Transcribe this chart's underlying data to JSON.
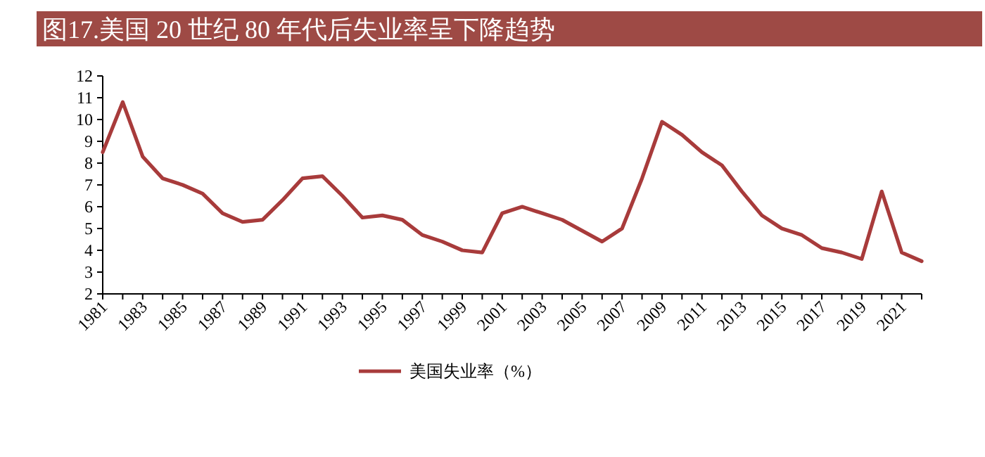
{
  "chart_data": {
    "type": "line",
    "title": "图17.美国 20 世纪 80 年代后失业率呈下降趋势",
    "x": [
      1981,
      1982,
      1983,
      1984,
      1985,
      1986,
      1987,
      1988,
      1989,
      1990,
      1991,
      1992,
      1993,
      1994,
      1995,
      1996,
      1997,
      1998,
      1999,
      2000,
      2001,
      2002,
      2003,
      2004,
      2005,
      2006,
      2007,
      2008,
      2009,
      2010,
      2011,
      2012,
      2013,
      2014,
      2015,
      2016,
      2017,
      2018,
      2019,
      2020,
      2021,
      2022
    ],
    "series": [
      {
        "name": "美国失业率（%）",
        "color": "#a83b3b",
        "values": [
          8.5,
          10.8,
          8.3,
          7.3,
          7.0,
          6.6,
          5.7,
          5.3,
          5.4,
          6.3,
          7.3,
          7.4,
          6.5,
          5.5,
          5.6,
          5.4,
          4.7,
          4.4,
          4.0,
          3.9,
          5.7,
          6.0,
          5.7,
          5.4,
          4.9,
          4.4,
          5.0,
          7.3,
          9.9,
          9.3,
          8.5,
          7.9,
          6.7,
          5.6,
          5.0,
          4.7,
          4.1,
          3.9,
          3.6,
          6.7,
          3.9,
          3.5
        ]
      }
    ],
    "xlim": [
      1981,
      2022
    ],
    "xticks": [
      1981,
      {
        "value": 1982,
        "label": null
      },
      1983,
      {
        "value": 1984,
        "label": null
      },
      1985,
      {
        "value": 1986,
        "label": null
      },
      1987,
      {
        "value": 1988,
        "label": null
      },
      1989,
      {
        "value": 1990,
        "label": null
      },
      1991,
      {
        "value": 1992,
        "label": null
      },
      1993,
      {
        "value": 1994,
        "label": null
      },
      1995,
      {
        "value": 1996,
        "label": null
      },
      1997,
      {
        "value": 1998,
        "label": null
      },
      1999,
      {
        "value": 2000,
        "label": null
      },
      2001,
      {
        "value": 2002,
        "label": null
      },
      2003,
      {
        "value": 2004,
        "label": null
      },
      2005,
      {
        "value": 2006,
        "label": null
      },
      2007,
      {
        "value": 2008,
        "label": null
      },
      2009,
      {
        "value": 2010,
        "label": null
      },
      2011,
      {
        "value": 2012,
        "label": null
      },
      2013,
      {
        "value": 2014,
        "label": null
      },
      2015,
      {
        "value": 2016,
        "label": null
      },
      2017,
      {
        "value": 2018,
        "label": null
      },
      2019,
      {
        "value": 2020,
        "label": null
      },
      2021,
      {
        "value": 2022,
        "label": null
      }
    ],
    "ylim": [
      2,
      12
    ],
    "yticks": [
      2,
      3,
      4,
      5,
      6,
      7,
      8,
      9,
      10,
      11,
      12
    ],
    "legend": "bottom"
  }
}
